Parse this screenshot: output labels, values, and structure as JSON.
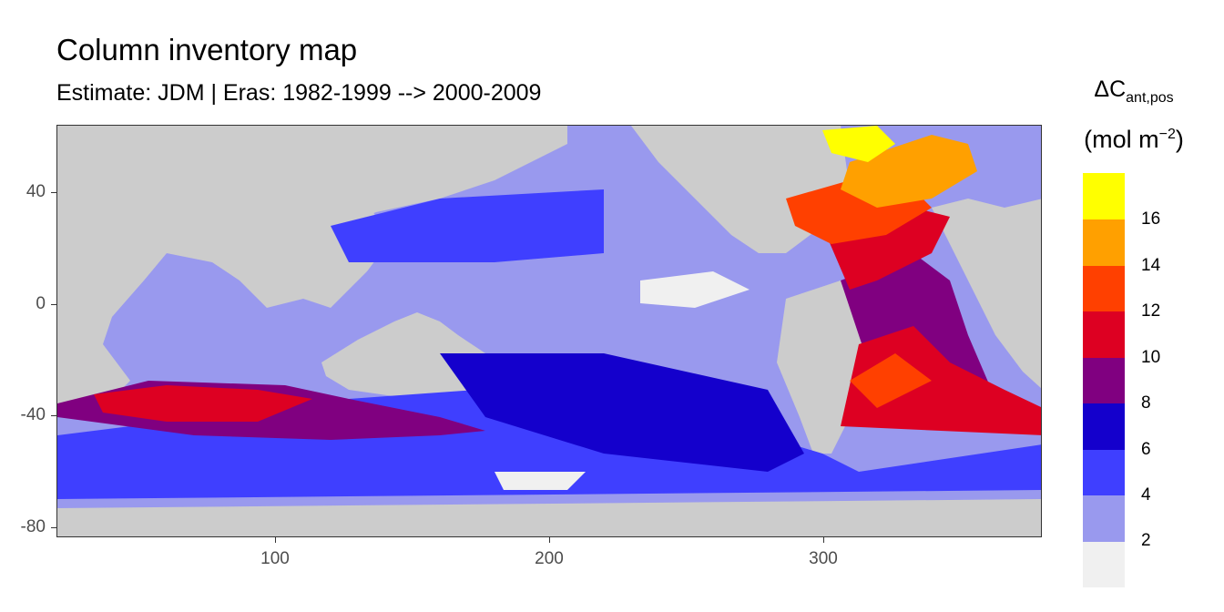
{
  "chart_data": {
    "type": "heatmap",
    "title": "Column inventory map",
    "subtitle": "Estimate: JDM  | Eras: 1982-1999 --> 2000-2009",
    "legend": {
      "title_main": "ΔC",
      "title_sub": "ant,pos",
      "unit_open": "(mol m",
      "unit_sup": "−2",
      "unit_close": ")",
      "breaks": [
        "2",
        "4",
        "6",
        "8",
        "10",
        "12",
        "14",
        "16"
      ],
      "colors": [
        "#f0f0f0",
        "#9999ee",
        "#3f3fff",
        "#1400cc",
        "#800080",
        "#dd0022",
        "#ff4000",
        "#ffa000",
        "#ffff00"
      ],
      "placement": "right"
    },
    "x_ticks": [
      "100",
      "200",
      "300"
    ],
    "y_ticks": [
      "40",
      "0",
      "-40",
      "-80"
    ],
    "xlim": [
      20,
      380
    ],
    "ylim": [
      -85,
      64
    ],
    "land_color": "#cccccc"
  }
}
